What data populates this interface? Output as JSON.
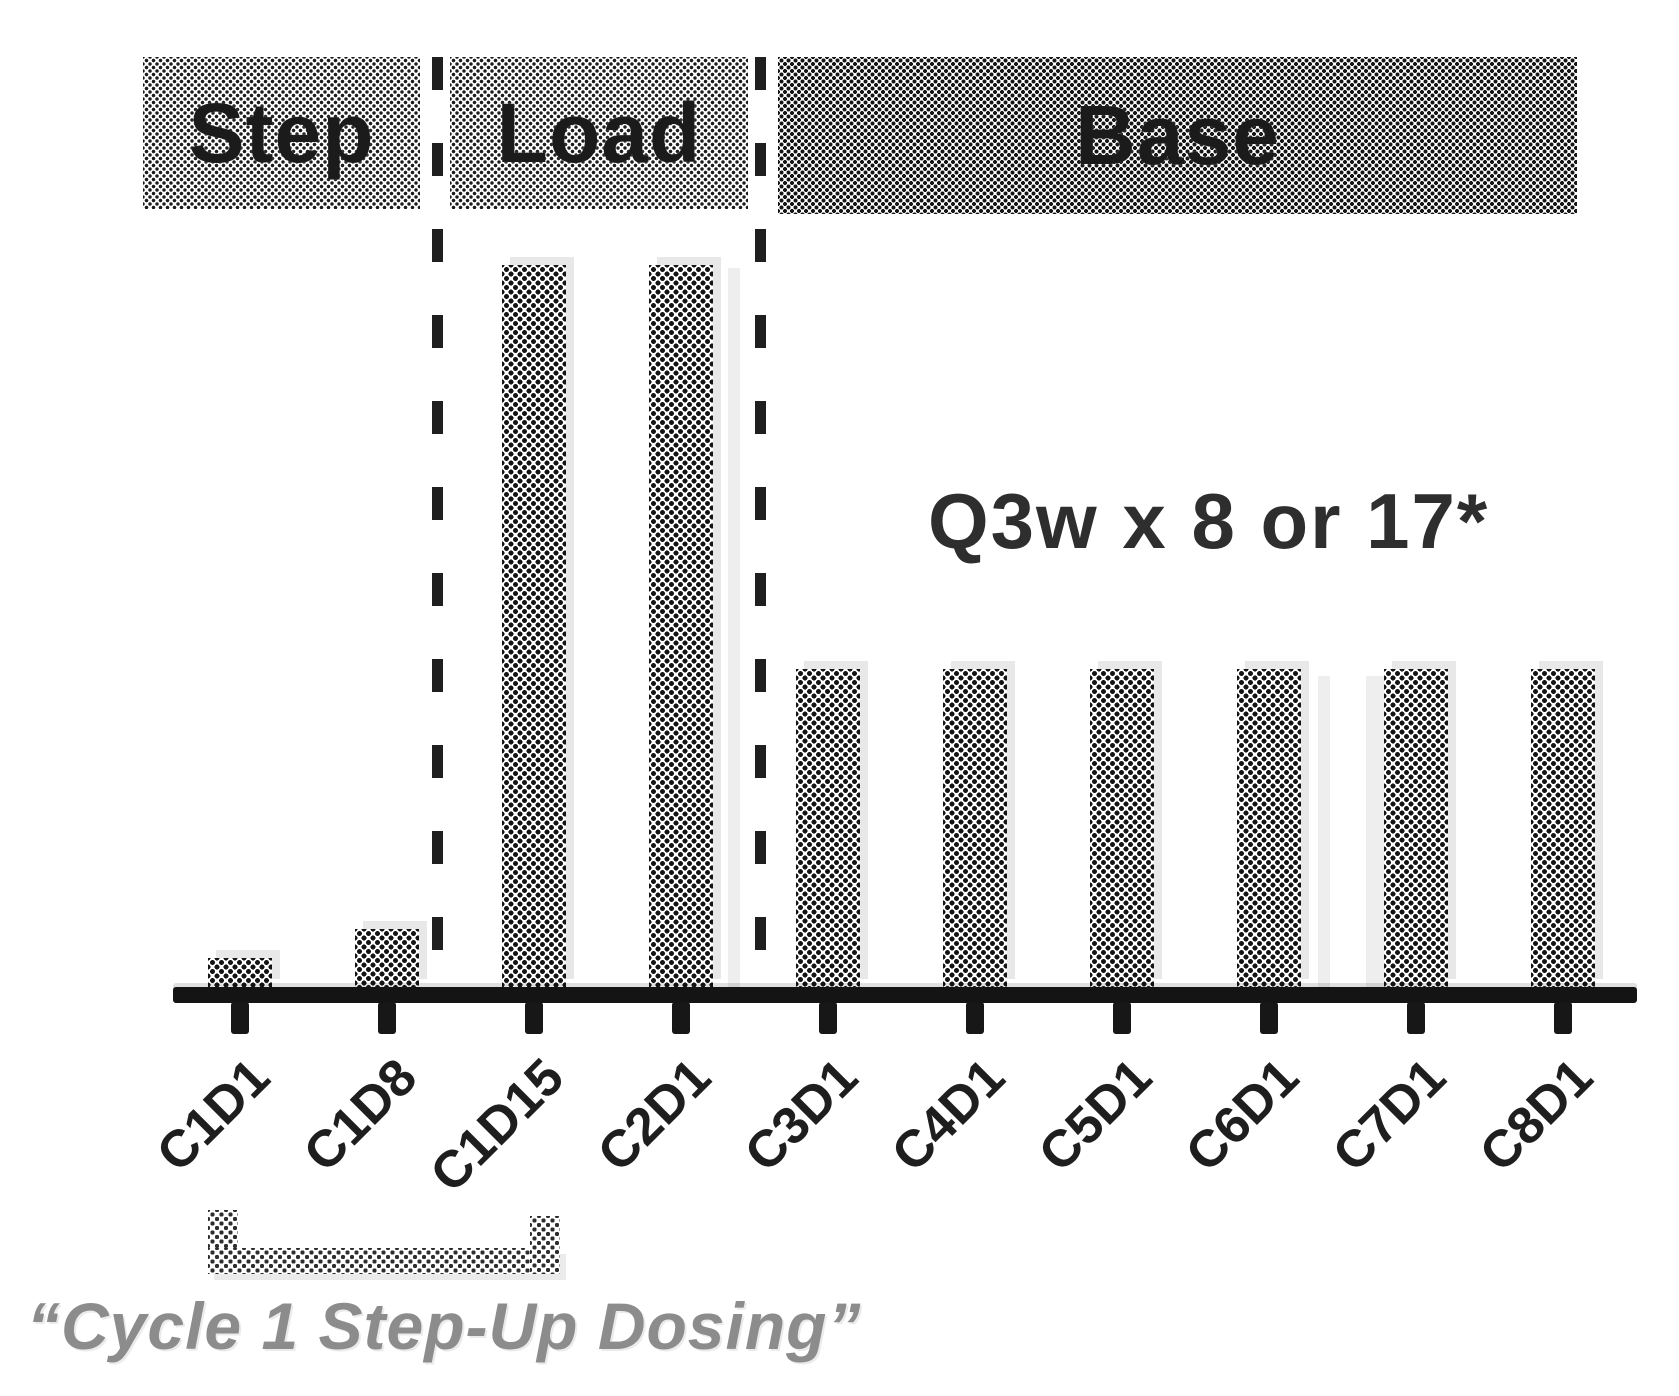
{
  "figure": {
    "phases": [
      {
        "id": "step",
        "label": "Step"
      },
      {
        "id": "load",
        "label": "Load"
      },
      {
        "id": "base",
        "label": "Base"
      }
    ],
    "annotation": "Q3w x 8 or 17*",
    "caption": "“Cycle 1 Step-Up Dosing”"
  },
  "chart_data": {
    "type": "bar",
    "title": "",
    "xlabel": "",
    "ylabel": "",
    "categories": [
      "C1D1",
      "C1D8",
      "C1D15",
      "C2D1",
      "C3D1",
      "C4D1",
      "C5D1",
      "C6D1",
      "C7D1",
      "C8D1"
    ],
    "values": [
      4,
      8,
      100,
      100,
      44,
      44,
      44,
      44,
      44,
      44
    ],
    "value_units": "relative dose height, % of loading dose (no y-axis scale shown)",
    "phase_by_category": [
      "Step",
      "Step",
      "Load",
      "Load",
      "Base",
      "Base",
      "Base",
      "Base",
      "Base",
      "Base"
    ],
    "ylim": [
      0,
      100
    ],
    "grid": false,
    "legend": "none",
    "annotations": [
      "Q3w x 8 or 17*",
      "“Cycle 1 Step-Up Dosing”"
    ]
  },
  "colors": {
    "background": "#ffffff",
    "band_fill": "#c6c6c6",
    "base_band_fill": "#b3b3b3",
    "bar_fill": "#9a9a9a",
    "axis": "#141414",
    "band_text": "#1b1b1b",
    "xlabel_text": "#1e1e1e",
    "annotation_text": "#2e2e2e",
    "caption_text": "#8c8c8c",
    "bracket": "#a5a5a5"
  }
}
